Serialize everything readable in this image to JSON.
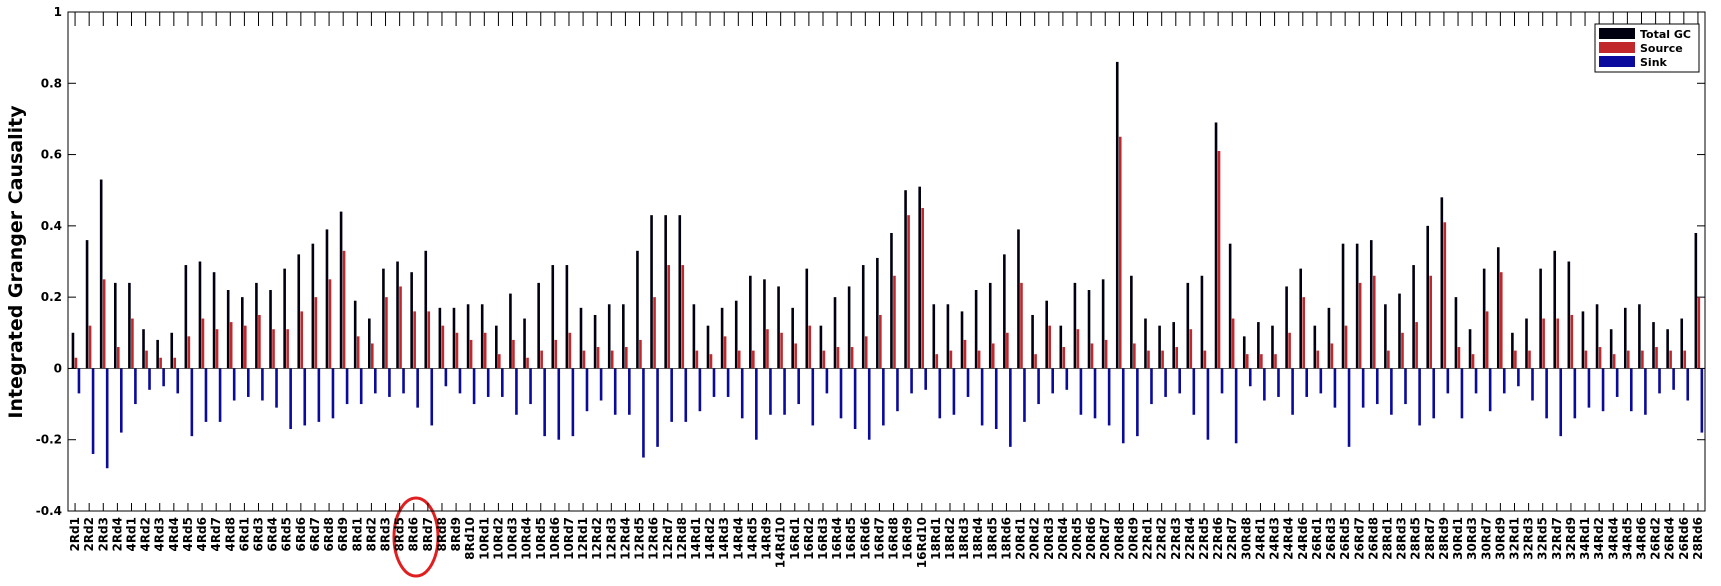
{
  "chart_data": {
    "type": "bar",
    "ylabel": "Integrated Granger Causality",
    "categories": [
      "2Rd1",
      "2Rd2",
      "2Rd3",
      "2Rd4",
      "4Rd1",
      "4Rd2",
      "4Rd3",
      "4Rd4",
      "4Rd5",
      "4Rd6",
      "4Rd7",
      "4Rd8",
      "6Rd1",
      "6Rd3",
      "6Rd4",
      "6Rd5",
      "6Rd6",
      "6Rd7",
      "6Rd8",
      "6Rd9",
      "8Rd1",
      "8Rd2",
      "8Rd3",
      "8Rd5",
      "8Rd6",
      "8Rd7",
      "8Rd8",
      "8Rd9",
      "8Rd10",
      "10Rd1",
      "10Rd2",
      "10Rd3",
      "10Rd4",
      "10Rd5",
      "10Rd6",
      "10Rd7",
      "12Rd1",
      "12Rd2",
      "12Rd3",
      "12Rd4",
      "12Rd5",
      "12Rd6",
      "12Rd7",
      "12Rd8",
      "14Rd1",
      "14Rd2",
      "14Rd3",
      "14Rd4",
      "14Rd5",
      "14Rd9",
      "14Rd10",
      "16Rd1",
      "16Rd2",
      "16Rd3",
      "16Rd4",
      "16Rd5",
      "16Rd6",
      "16Rd7",
      "16Rd8",
      "16Rd9",
      "16Rd10",
      "18Rd1",
      "18Rd2",
      "18Rd3",
      "18Rd4",
      "18Rd5",
      "18Rd6",
      "20Rd1",
      "20Rd2",
      "20Rd3",
      "20Rd4",
      "20Rd5",
      "20Rd6",
      "20Rd7",
      "20Rd8",
      "20Rd9",
      "22Rd1",
      "22Rd2",
      "22Rd3",
      "22Rd4",
      "22Rd5",
      "22Rd6",
      "22Rd7",
      "30Rd8",
      "24Rd1",
      "24Rd3",
      "24Rd4",
      "24Rd6",
      "26Rd1",
      "26Rd3",
      "26Rd5",
      "26Rd7",
      "26Rd8",
      "28Rd1",
      "28Rd3",
      "28Rd5",
      "28Rd7",
      "28Rd9",
      "30Rd1",
      "30Rd3",
      "30Rd7",
      "30Rd9",
      "32Rd1",
      "32Rd3",
      "32Rd5",
      "32Rd7",
      "32Rd9",
      "34Rd1",
      "34Rd2",
      "34Rd4",
      "34Rd5",
      "34Rd6",
      "26Rd2",
      "26Rd4",
      "26Rd6",
      "28Rd6"
    ],
    "series": [
      {
        "name": "Total GC",
        "color": "#000010",
        "values": [
          0.1,
          0.36,
          0.53,
          0.24,
          0.24,
          0.11,
          0.08,
          0.1,
          0.29,
          0.3,
          0.27,
          0.22,
          0.2,
          0.24,
          0.22,
          0.28,
          0.32,
          0.35,
          0.39,
          0.44,
          0.19,
          0.14,
          0.28,
          0.3,
          0.27,
          0.33,
          0.17,
          0.17,
          0.18,
          0.18,
          0.12,
          0.21,
          0.14,
          0.24,
          0.29,
          0.29,
          0.17,
          0.15,
          0.18,
          0.18,
          0.33,
          0.43,
          0.43,
          0.43,
          0.18,
          0.12,
          0.17,
          0.19,
          0.26,
          0.25,
          0.23,
          0.17,
          0.28,
          0.12,
          0.2,
          0.23,
          0.29,
          0.31,
          0.38,
          0.5,
          0.51,
          0.18,
          0.18,
          0.16,
          0.22,
          0.24,
          0.32,
          0.39,
          0.15,
          0.19,
          0.12,
          0.24,
          0.22,
          0.25,
          0.86,
          0.26,
          0.14,
          0.12,
          0.13,
          0.24,
          0.26,
          0.69,
          0.35,
          0.09,
          0.13,
          0.12,
          0.23,
          0.28,
          0.12,
          0.17,
          0.35,
          0.35,
          0.36,
          0.18,
          0.21,
          0.29,
          0.4,
          0.48,
          0.2,
          0.11,
          0.28,
          0.34,
          0.1,
          0.14,
          0.28,
          0.33,
          0.3,
          0.16,
          0.18,
          0.11,
          0.17,
          0.18,
          0.13,
          0.11,
          0.14,
          0.38
        ]
      },
      {
        "name": "Source",
        "color": "#c0282c",
        "values": [
          0.03,
          0.12,
          0.25,
          0.06,
          0.14,
          0.05,
          0.03,
          0.03,
          0.09,
          0.14,
          0.11,
          0.13,
          0.12,
          0.15,
          0.11,
          0.11,
          0.16,
          0.2,
          0.25,
          0.33,
          0.09,
          0.07,
          0.2,
          0.23,
          0.16,
          0.16,
          0.12,
          0.1,
          0.08,
          0.1,
          0.04,
          0.08,
          0.03,
          0.05,
          0.08,
          0.1,
          0.05,
          0.06,
          0.05,
          0.06,
          0.08,
          0.2,
          0.29,
          0.29,
          0.05,
          0.04,
          0.09,
          0.05,
          0.05,
          0.11,
          0.1,
          0.07,
          0.12,
          0.05,
          0.06,
          0.06,
          0.09,
          0.15,
          0.26,
          0.43,
          0.45,
          0.04,
          0.05,
          0.08,
          0.05,
          0.07,
          0.1,
          0.24,
          0.04,
          0.12,
          0.06,
          0.11,
          0.07,
          0.08,
          0.65,
          0.07,
          0.05,
          0.05,
          0.06,
          0.11,
          0.05,
          0.61,
          0.14,
          0.04,
          0.04,
          0.04,
          0.1,
          0.2,
          0.05,
          0.07,
          0.12,
          0.24,
          0.26,
          0.05,
          0.1,
          0.13,
          0.26,
          0.41,
          0.06,
          0.04,
          0.16,
          0.27,
          0.05,
          0.05,
          0.14,
          0.14,
          0.15,
          0.05,
          0.06,
          0.04,
          0.05,
          0.05,
          0.06,
          0.05,
          0.05,
          0.2
        ]
      },
      {
        "name": "Sink",
        "color": "#0a0a9c",
        "values": [
          -0.07,
          -0.24,
          -0.28,
          -0.18,
          -0.1,
          -0.06,
          -0.05,
          -0.07,
          -0.19,
          -0.15,
          -0.15,
          -0.09,
          -0.08,
          -0.09,
          -0.11,
          -0.17,
          -0.16,
          -0.15,
          -0.14,
          -0.1,
          -0.1,
          -0.07,
          -0.08,
          -0.07,
          -0.11,
          -0.16,
          -0.05,
          -0.07,
          -0.1,
          -0.08,
          -0.08,
          -0.13,
          -0.1,
          -0.19,
          -0.2,
          -0.19,
          -0.12,
          -0.09,
          -0.13,
          -0.13,
          -0.25,
          -0.22,
          -0.15,
          -0.15,
          -0.12,
          -0.08,
          -0.08,
          -0.14,
          -0.2,
          -0.13,
          -0.13,
          -0.1,
          -0.16,
          -0.07,
          -0.14,
          -0.17,
          -0.2,
          -0.16,
          -0.12,
          -0.07,
          -0.06,
          -0.14,
          -0.13,
          -0.08,
          -0.16,
          -0.17,
          -0.22,
          -0.15,
          -0.1,
          -0.07,
          -0.06,
          -0.13,
          -0.14,
          -0.16,
          -0.21,
          -0.19,
          -0.1,
          -0.08,
          -0.07,
          -0.13,
          -0.2,
          -0.07,
          -0.21,
          -0.05,
          -0.09,
          -0.08,
          -0.13,
          -0.08,
          -0.07,
          -0.11,
          -0.22,
          -0.11,
          -0.1,
          -0.13,
          -0.1,
          -0.16,
          -0.14,
          -0.07,
          -0.14,
          -0.07,
          -0.12,
          -0.07,
          -0.05,
          -0.09,
          -0.14,
          -0.19,
          -0.14,
          -0.11,
          -0.12,
          -0.08,
          -0.12,
          -0.13,
          -0.07,
          -0.06,
          -0.09,
          -0.18
        ]
      }
    ],
    "ylim": [
      -0.4,
      1
    ],
    "yticks": [
      -0.4,
      -0.2,
      0,
      0.2,
      0.4,
      0.6,
      0.8,
      1
    ],
    "grid": false,
    "legend": "top-right"
  }
}
